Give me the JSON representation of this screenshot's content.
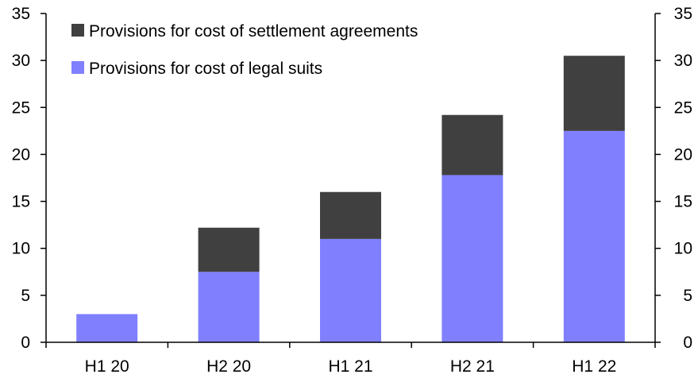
{
  "chart_data": {
    "type": "bar",
    "stacked": true,
    "categories": [
      "H1 20",
      "H2 20",
      "H1 21",
      "H2 21",
      "H1 22"
    ],
    "series": [
      {
        "name": "Provisions for cost of legal suits",
        "values": [
          3.0,
          7.5,
          11.0,
          17.8,
          22.5
        ],
        "color": "#8080ff"
      },
      {
        "name": "Provisions for cost of settlement agreements",
        "values": [
          0.0,
          4.7,
          5.0,
          6.4,
          8.0
        ],
        "color": "#404040"
      }
    ],
    "ylim": [
      0,
      35
    ],
    "yticks": [
      "0",
      "5",
      "10",
      "15",
      "20",
      "25",
      "30",
      "35"
    ],
    "y_axes": "both",
    "grid": false,
    "legend_placement": "top-left",
    "legend_order": [
      "Provisions for cost of settlement agreements",
      "Provisions for cost of legal suits"
    ]
  }
}
